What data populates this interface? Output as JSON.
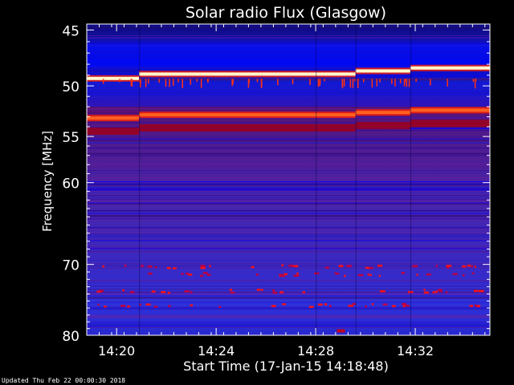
{
  "chart_data": {
    "type": "heatmap",
    "title": "Solar radio Flux (Glasgow)",
    "xlabel": "Start Time (17-Jan-15 14:18:48)",
    "ylabel": "Frequency [MHz]",
    "x_range_minutes": [
      "14:18:48",
      "14:35:00"
    ],
    "x_ticks": [
      "14:20",
      "14:24",
      "14:28",
      "14:32"
    ],
    "x_tick_minutes": [
      1.2,
      5.2,
      9.2,
      13.2
    ],
    "x_span_minutes": 16.2,
    "y_ticks": [
      45,
      50,
      55,
      60,
      70,
      80
    ],
    "y_scale": "log",
    "ylim": [
      80,
      44.5
    ],
    "colormap": [
      "#00008b",
      "#0000ff",
      "#6a1fa0",
      "#ff0000",
      "#ffff80",
      "#ffffff"
    ],
    "bright_bands_mhz": [
      {
        "freq": 48.9,
        "intensity": "saturated",
        "color": "#fffacd"
      },
      {
        "freq": 52.8,
        "intensity": "high",
        "color": "#ff6020"
      },
      {
        "freq": 54.0,
        "intensity": "medium",
        "color": "#cc0000"
      }
    ],
    "background_band": {
      "from": 55,
      "to": 80,
      "color": "#4a1ea8"
    },
    "segment_breaks_minutes": [
      2.1,
      9.2,
      10.8,
      13.0
    ]
  },
  "footer": {
    "updated": "Updated Thu Feb 22 00:00:30 2018"
  }
}
